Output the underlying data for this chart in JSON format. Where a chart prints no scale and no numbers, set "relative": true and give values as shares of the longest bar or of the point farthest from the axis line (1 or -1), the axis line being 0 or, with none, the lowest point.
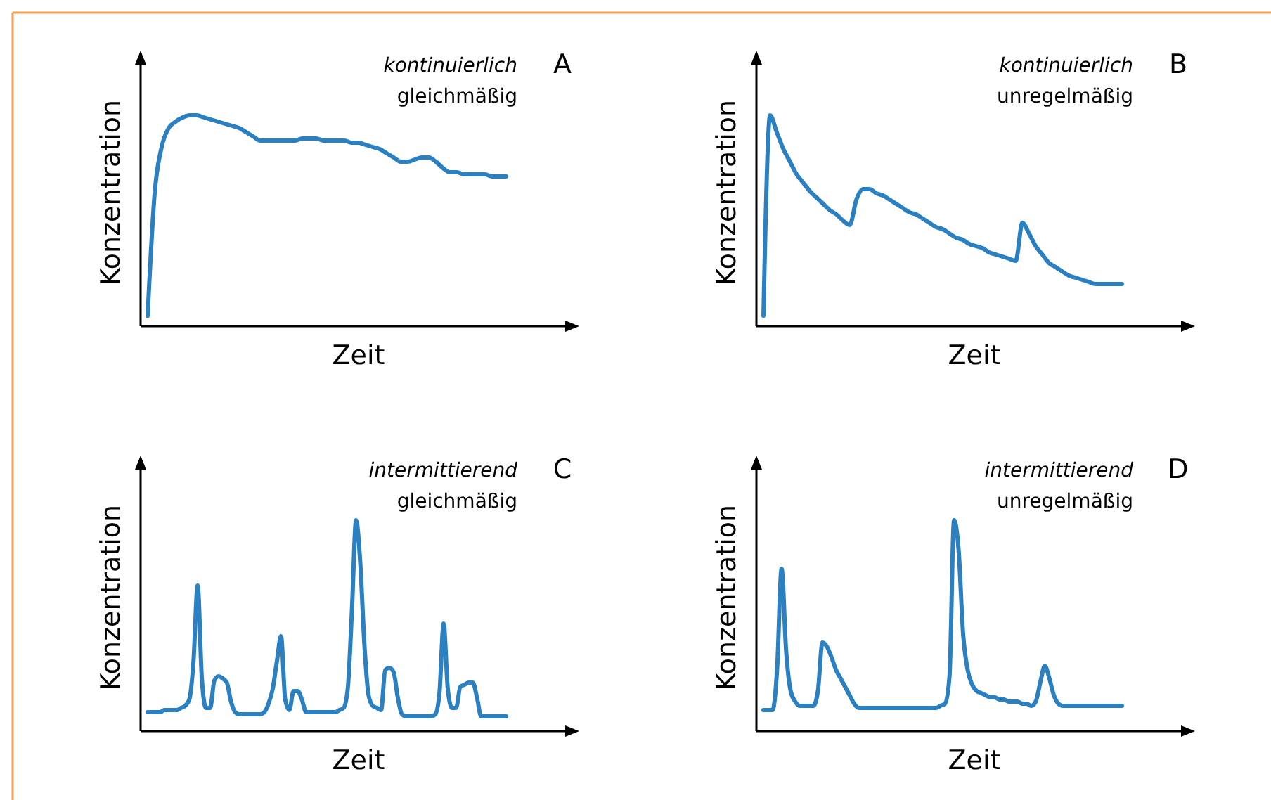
{
  "chart_data": [
    {
      "type": "line",
      "annotations": [
        "A",
        "kontinuierlich",
        "gleichmäßig"
      ],
      "xlabel": "Zeit",
      "ylabel": "Konzentration",
      "relative": true,
      "categories": [
        null,
        null,
        null,
        null,
        null,
        null,
        null,
        null,
        null,
        null,
        null,
        null,
        null,
        null,
        null,
        null,
        null,
        null,
        null,
        null,
        null,
        null,
        null,
        null,
        null,
        null,
        null,
        null,
        null,
        null,
        null,
        null,
        null,
        null,
        null,
        null,
        null,
        null,
        null,
        null,
        null,
        null,
        null,
        null,
        null,
        null,
        null,
        null,
        null,
        null,
        null,
        null
      ],
      "series": [
        {
          "color": "#2b80c2",
          "values": [
            0.05,
            0.63,
            0.85,
            0.94,
            0.97,
            0.99,
            1,
            1,
            0.99,
            0.98,
            0.97,
            0.96,
            0.95,
            0.94,
            0.92,
            0.9,
            0.88,
            0.88,
            0.88,
            0.88,
            0.88,
            0.88,
            0.89,
            0.89,
            0.89,
            0.88,
            0.88,
            0.88,
            0.88,
            0.87,
            0.87,
            0.86,
            0.85,
            0.84,
            0.82,
            0.8,
            0.78,
            0.78,
            0.79,
            0.8,
            0.8,
            0.78,
            0.75,
            0.73,
            0.73,
            0.72,
            0.72,
            0.72,
            0.72,
            0.71,
            0.71,
            0.71
          ]
        }
      ]
    },
    {
      "type": "line",
      "annotations": [
        "B",
        "kontinuierlich",
        "unregelmäßig"
      ],
      "xlabel": "Zeit",
      "ylabel": "Konzentration",
      "relative": true,
      "categories": [
        null,
        null,
        null,
        null,
        null,
        null,
        null,
        null,
        null,
        null,
        null,
        null,
        null,
        null,
        null,
        null,
        null,
        null,
        null,
        null,
        null,
        null,
        null,
        null,
        null,
        null,
        null,
        null,
        null,
        null,
        null,
        null,
        null,
        null,
        null,
        null,
        null,
        null,
        null,
        null,
        null,
        null,
        null,
        null,
        null,
        null,
        null,
        null,
        null,
        null,
        null,
        null,
        null,
        null,
        null
      ],
      "series": [
        {
          "color": "#2b80c2",
          "values": [
            0.05,
            1,
            0.92,
            0.84,
            0.78,
            0.72,
            0.68,
            0.64,
            0.61,
            0.58,
            0.55,
            0.53,
            0.5,
            0.48,
            0.6,
            0.65,
            0.65,
            0.63,
            0.62,
            0.6,
            0.58,
            0.56,
            0.54,
            0.53,
            0.51,
            0.49,
            0.47,
            0.46,
            0.44,
            0.42,
            0.41,
            0.39,
            0.38,
            0.37,
            0.35,
            0.34,
            0.33,
            0.32,
            0.31,
            0.49,
            0.44,
            0.38,
            0.34,
            0.3,
            0.28,
            0.26,
            0.24,
            0.23,
            0.22,
            0.21,
            0.2,
            0.2,
            0.2,
            0.2,
            0.2
          ]
        }
      ]
    },
    {
      "type": "line",
      "annotations": [
        "C",
        "intermittierend",
        "gleichmäßig"
      ],
      "xlabel": "Zeit",
      "ylabel": "Konzentration",
      "relative": true,
      "categories": [
        null,
        null,
        null,
        null,
        null,
        null,
        null,
        null,
        null,
        null,
        null,
        null,
        null,
        null,
        null,
        null,
        null,
        null,
        null,
        null,
        null,
        null,
        null,
        null,
        null,
        null,
        null,
        null,
        null,
        null,
        null,
        null,
        null,
        null,
        null,
        null,
        null,
        null,
        null,
        null,
        null,
        null,
        null,
        null,
        null,
        null,
        null,
        null,
        null,
        null,
        null,
        null,
        null,
        null,
        null,
        null,
        null,
        null,
        null,
        null,
        null,
        null,
        null,
        null,
        null,
        null,
        null,
        null,
        null,
        null,
        null,
        null,
        null,
        null,
        null,
        null,
        null,
        null,
        null,
        null,
        null,
        null,
        null,
        null,
        null,
        null,
        null
      ],
      "series": [
        {
          "color": "#2b80c2",
          "values": [
            0.09,
            0.09,
            0.09,
            0.09,
            0.1,
            0.1,
            0.1,
            0.1,
            0.11,
            0.12,
            0.15,
            0.33,
            0.69,
            0.25,
            0.11,
            0.11,
            0.24,
            0.26,
            0.25,
            0.23,
            0.14,
            0.09,
            0.08,
            0.08,
            0.08,
            0.08,
            0.08,
            0.08,
            0.09,
            0.13,
            0.2,
            0.33,
            0.45,
            0.15,
            0.1,
            0.19,
            0.19,
            0.15,
            0.09,
            0.09,
            0.09,
            0.09,
            0.09,
            0.09,
            0.09,
            0.09,
            0.1,
            0.11,
            0.2,
            0.57,
            1,
            0.8,
            0.41,
            0.17,
            0.12,
            0.11,
            0.1,
            0.29,
            0.3,
            0.28,
            0.16,
            0.08,
            0.07,
            0.07,
            0.07,
            0.07,
            0.07,
            0.07,
            0.07,
            0.08,
            0.18,
            0.51,
            0.2,
            0.11,
            0.11,
            0.21,
            0.22,
            0.23,
            0.23,
            0.16,
            0.07,
            0.07,
            0.07,
            0.07,
            0.07,
            0.07,
            0.07
          ]
        }
      ]
    },
    {
      "type": "line",
      "annotations": [
        "D",
        "intermittierend",
        "unregelmäßig"
      ],
      "xlabel": "Zeit",
      "ylabel": "Konzentration",
      "relative": true,
      "categories": [
        null,
        null,
        null,
        null,
        null,
        null,
        null,
        null,
        null,
        null,
        null,
        null,
        null,
        null,
        null,
        null,
        null,
        null,
        null,
        null,
        null,
        null,
        null,
        null,
        null,
        null,
        null,
        null,
        null,
        null,
        null,
        null,
        null,
        null,
        null,
        null,
        null,
        null,
        null,
        null,
        null,
        null,
        null,
        null,
        null,
        null,
        null,
        null,
        null,
        null,
        null,
        null,
        null,
        null,
        null,
        null,
        null,
        null,
        null,
        null,
        null,
        null,
        null,
        null,
        null,
        null,
        null,
        null,
        null,
        null,
        null,
        null,
        null,
        null,
        null,
        null,
        null,
        null,
        null,
        null
      ],
      "series": [
        {
          "color": "#2b80c2",
          "values": [
            0.1,
            0.1,
            0.1,
            0.29,
            0.77,
            0.38,
            0.19,
            0.14,
            0.12,
            0.12,
            0.12,
            0.12,
            0.19,
            0.42,
            0.4,
            0.35,
            0.29,
            0.25,
            0.21,
            0.17,
            0.13,
            0.11,
            0.11,
            0.11,
            0.11,
            0.11,
            0.11,
            0.11,
            0.11,
            0.11,
            0.11,
            0.11,
            0.11,
            0.11,
            0.11,
            0.11,
            0.11,
            0.11,
            0.11,
            0.12,
            0.13,
            0.26,
            1,
            0.86,
            0.46,
            0.29,
            0.22,
            0.19,
            0.18,
            0.17,
            0.16,
            0.16,
            0.15,
            0.15,
            0.14,
            0.14,
            0.14,
            0.13,
            0.13,
            0.12,
            0.14,
            0.23,
            0.31,
            0.25,
            0.17,
            0.13,
            0.12,
            0.12,
            0.12,
            0.12,
            0.12,
            0.12,
            0.12,
            0.12,
            0.12,
            0.12,
            0.12,
            0.12,
            0.12,
            0.12
          ]
        }
      ]
    }
  ]
}
